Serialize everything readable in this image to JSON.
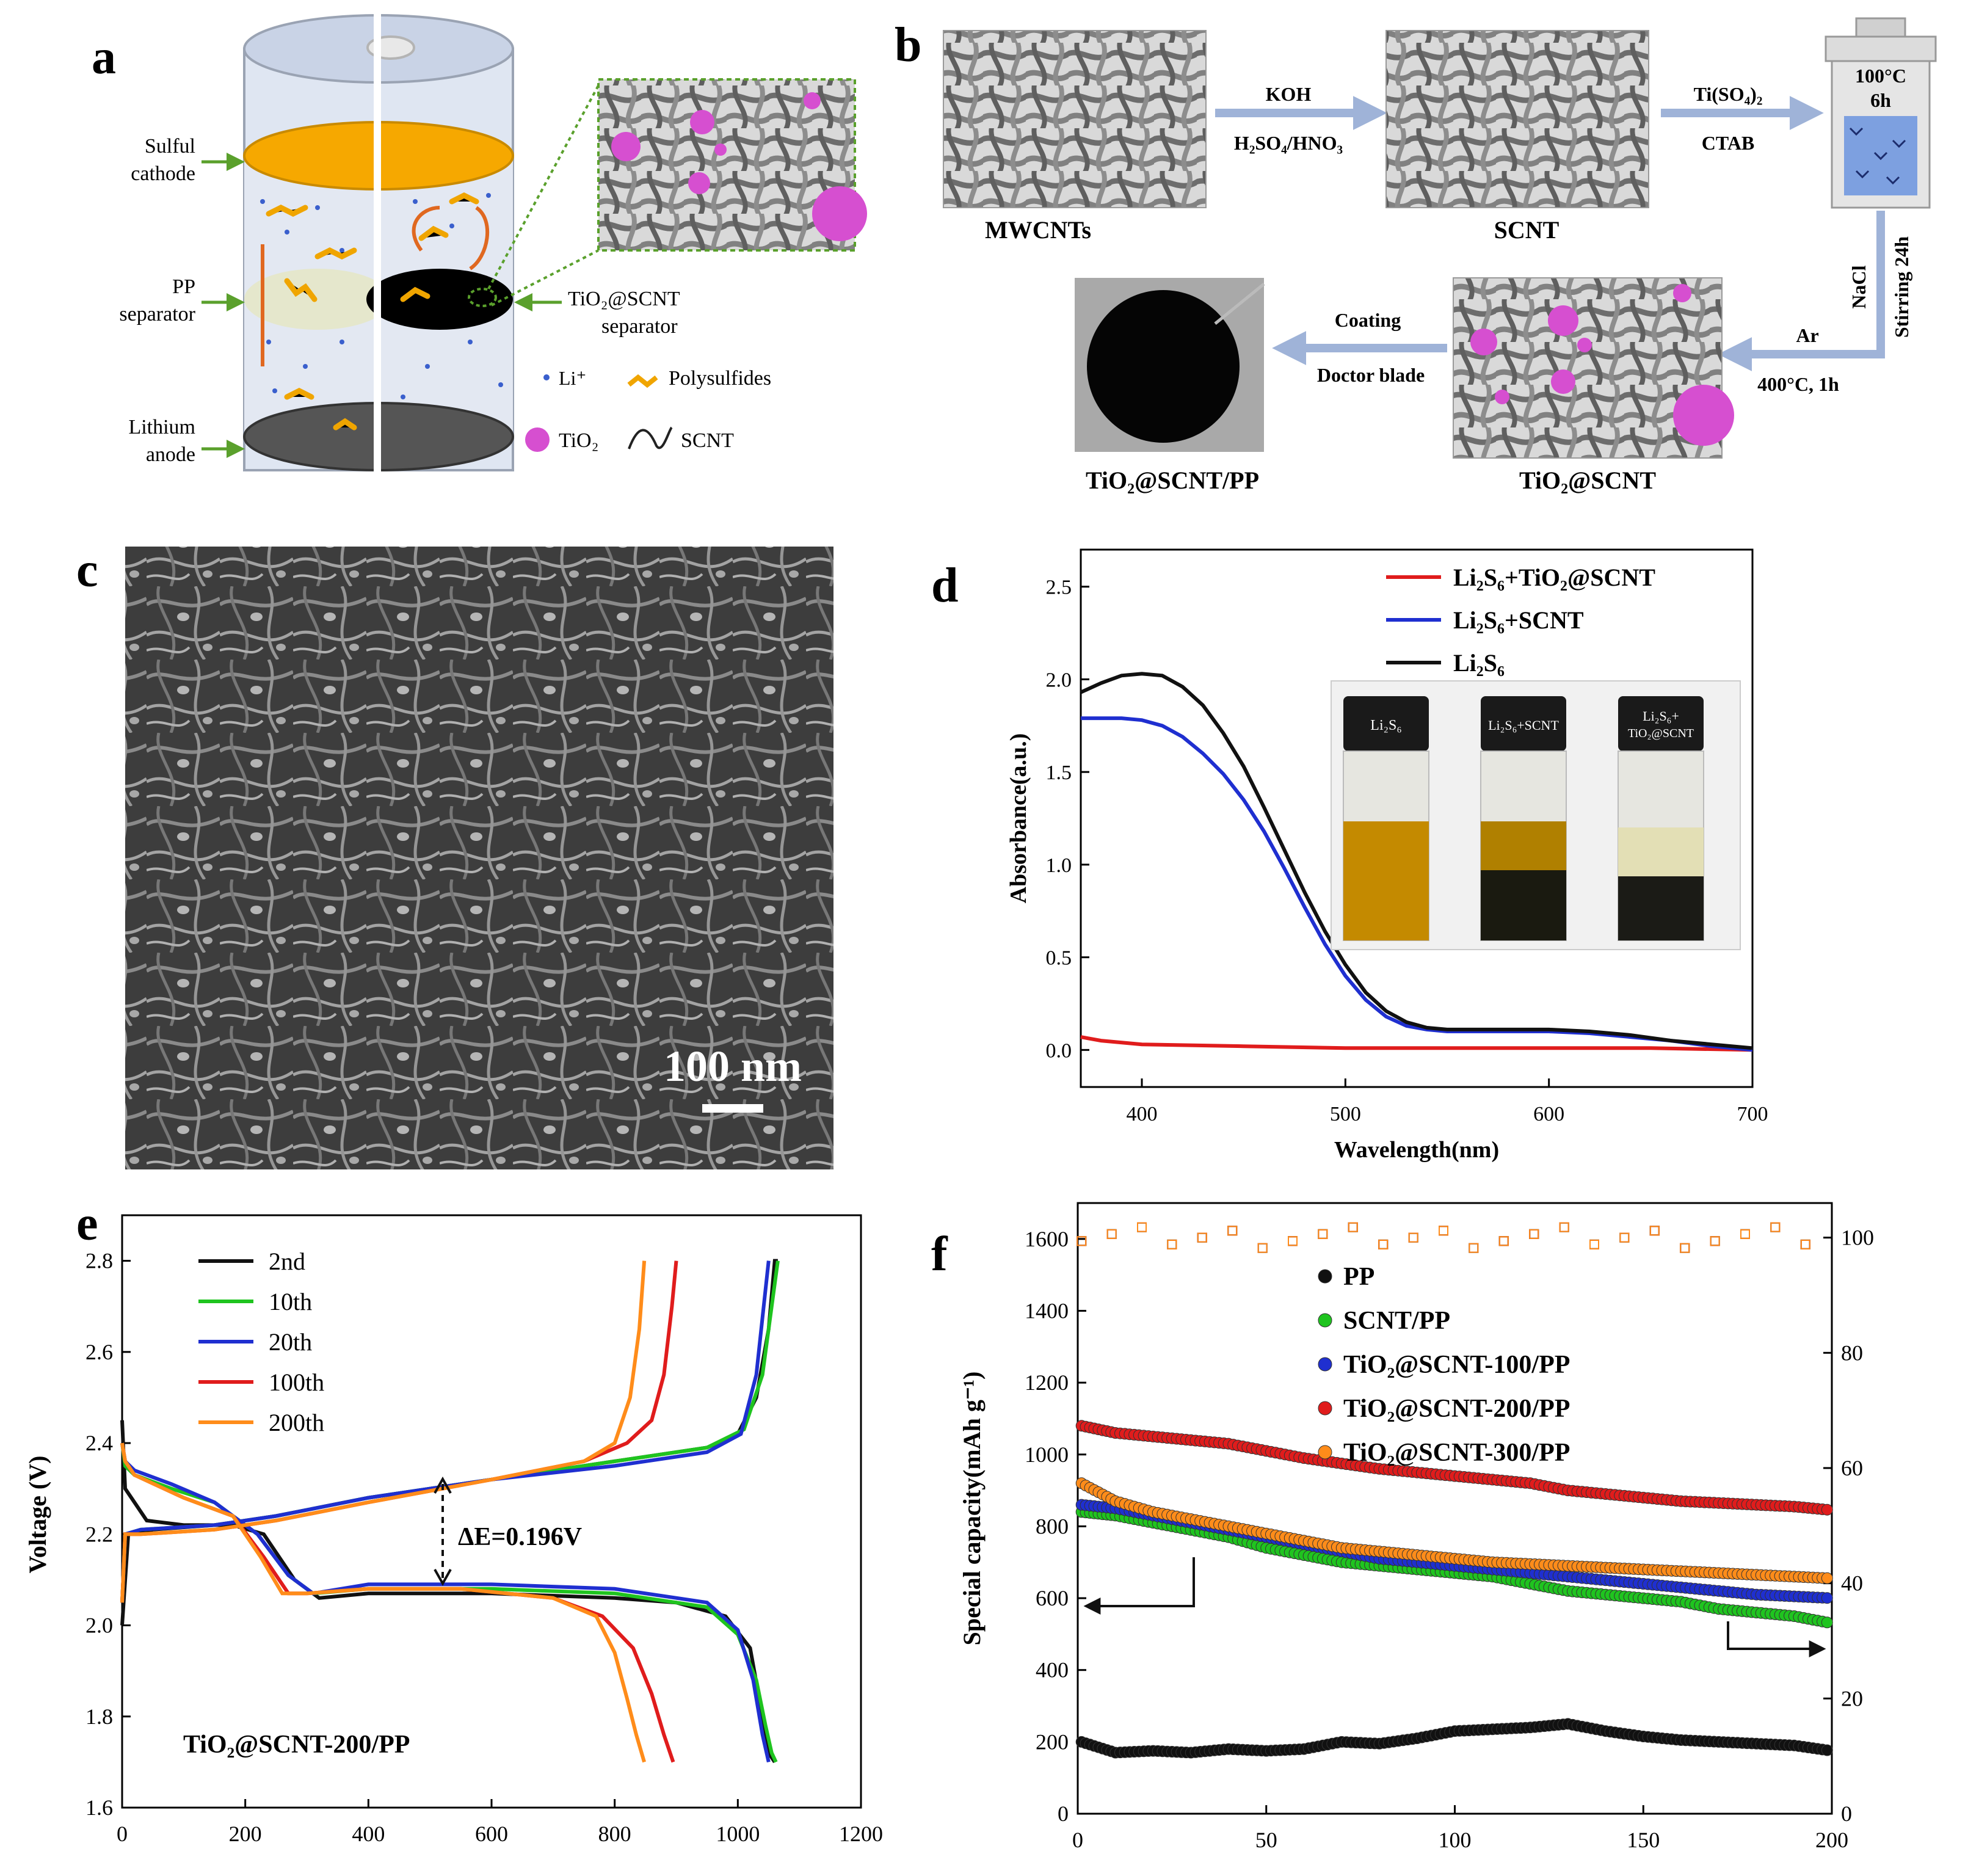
{
  "colors": {
    "black": "#111111",
    "green": "#1fc41f",
    "blue": "#1f2fd0",
    "red": "#e01c1c",
    "orange": "#ff8c1a",
    "tio2": "#d64fd0",
    "arrow_green": "#5aa02c",
    "flow_arrow": "#9fb3d8"
  },
  "panel_a": {
    "letter": "a",
    "labels": {
      "cathode": [
        "Sulful",
        "cathode"
      ],
      "pp": [
        "PP",
        "separator"
      ],
      "anode": [
        "Lithium",
        "anode"
      ],
      "tio2_sep": [
        "TiO₂@SCNT",
        "separator"
      ]
    },
    "legend": {
      "li": "Li⁺",
      "polysulfides": "Polysulfides",
      "tio2": "TiO₂",
      "scnt": "SCNT"
    }
  },
  "panel_b": {
    "letter": "b",
    "mwcnts": "MWCNTs",
    "scnt": "SCNT",
    "step1_top": "KOH",
    "step1_bottom": "H₂SO₄/HNO₃",
    "step2_top": "Ti(SO₄)₂",
    "step2_bottom": "CTAB",
    "reactor_temp": "100°C",
    "reactor_time": "6h",
    "step3_a": "NaCl",
    "step3_b": "Stirring 24h",
    "step4_top": "Ar",
    "step4_bottom": "400°C, 1h",
    "step5_top": "Coating",
    "step5_bottom": "Doctor blade",
    "tio2_scnt": "TiO₂@SCNT",
    "tio2_scnt_pp": "TiO₂@SCNT/PP"
  },
  "panel_c": {
    "letter": "c",
    "scale_bar": "100 nm"
  },
  "panel_d": {
    "letter": "d"
  },
  "panel_e": {
    "letter": "e"
  },
  "panel_f": {
    "letter": "f"
  },
  "chart_data": [
    {
      "panel": "d",
      "type": "line",
      "xlabel": "Wavelength(nm)",
      "ylabel": "Absorbance(a.u.)",
      "xlim": [
        370,
        700
      ],
      "ylim": [
        -0.2,
        2.7
      ],
      "xticks": [
        400,
        500,
        600,
        700
      ],
      "yticks": [
        0.0,
        0.5,
        1.0,
        1.5,
        2.0,
        2.5
      ],
      "legend_position": "top-right",
      "series": [
        {
          "name": "Li₂S₆+TiO₂@SCNT",
          "color": "#e01c1c",
          "x": [
            370,
            380,
            400,
            450,
            500,
            550,
            600,
            650,
            700
          ],
          "y": [
            0.07,
            0.05,
            0.03,
            0.02,
            0.01,
            0.01,
            0.01,
            0.01,
            0.0
          ]
        },
        {
          "name": "Li₂S₆+SCNT",
          "color": "#1f2fd0",
          "x": [
            370,
            380,
            390,
            400,
            410,
            420,
            430,
            440,
            450,
            460,
            470,
            480,
            490,
            500,
            510,
            520,
            530,
            540,
            550,
            560,
            580,
            600,
            620,
            640,
            660,
            680,
            700
          ],
          "y": [
            1.79,
            1.79,
            1.79,
            1.78,
            1.75,
            1.69,
            1.6,
            1.49,
            1.35,
            1.18,
            0.98,
            0.77,
            0.57,
            0.4,
            0.27,
            0.18,
            0.13,
            0.11,
            0.1,
            0.1,
            0.1,
            0.1,
            0.09,
            0.07,
            0.05,
            0.02,
            0.0
          ]
        },
        {
          "name": "Li₂S₆",
          "color": "#111111",
          "x": [
            370,
            380,
            390,
            400,
            410,
            420,
            430,
            440,
            450,
            460,
            470,
            480,
            490,
            500,
            510,
            520,
            530,
            540,
            550,
            560,
            580,
            600,
            620,
            640,
            660,
            680,
            700
          ],
          "y": [
            1.93,
            1.98,
            2.02,
            2.03,
            2.02,
            1.96,
            1.86,
            1.71,
            1.53,
            1.31,
            1.08,
            0.85,
            0.64,
            0.46,
            0.31,
            0.21,
            0.15,
            0.12,
            0.11,
            0.11,
            0.11,
            0.11,
            0.1,
            0.08,
            0.05,
            0.03,
            0.01
          ]
        }
      ],
      "inset_labels": [
        "Li₂S₆",
        "Li₂S₆+SCNT",
        "Li₂S₆+",
        "TiO₂@SCNT"
      ]
    },
    {
      "panel": "e",
      "type": "line",
      "xlabel": "",
      "ylabel": "Voltage (V)",
      "xlim": [
        0,
        1200
      ],
      "ylim": [
        1.6,
        2.9
      ],
      "xticks": [
        0,
        200,
        400,
        600,
        800,
        1000,
        1200
      ],
      "yticks": [
        1.6,
        1.8,
        2.0,
        2.2,
        2.4,
        2.6,
        2.8
      ],
      "legend_position": "top-left",
      "annotation": "ΔE=0.196V",
      "annotation_x": 520,
      "sample_label": "TiO₂@SCNT-200/PP",
      "series": [
        {
          "name": "2nd",
          "color": "#111111",
          "discharge": {
            "x": [
              0,
              5,
              15,
              40,
              100,
              180,
              230,
              280,
              320,
              400,
              600,
              800,
              900,
              980,
              1020,
              1040,
              1050,
              1060
            ],
            "y": [
              2.45,
              2.3,
              2.28,
              2.23,
              2.22,
              2.22,
              2.2,
              2.1,
              2.06,
              2.07,
              2.07,
              2.06,
              2.05,
              2.02,
              1.95,
              1.8,
              1.72,
              1.7
            ]
          },
          "charge": {
            "x": [
              0,
              10,
              50,
              150,
              250,
              400,
              600,
              800,
              950,
              1000,
              1030,
              1050,
              1060,
              1065
            ],
            "y": [
              2.0,
              2.2,
              2.21,
              2.22,
              2.24,
              2.28,
              2.32,
              2.36,
              2.39,
              2.42,
              2.5,
              2.65,
              2.8,
              2.8
            ]
          }
        },
        {
          "name": "10th",
          "color": "#1fc41f",
          "discharge": {
            "x": [
              0,
              5,
              20,
              80,
              150,
              220,
              270,
              310,
              400,
              600,
              800,
              950,
              1000,
              1030,
              1045,
              1055,
              1062
            ],
            "y": [
              2.4,
              2.35,
              2.33,
              2.3,
              2.27,
              2.2,
              2.11,
              2.07,
              2.08,
              2.08,
              2.07,
              2.04,
              1.98,
              1.88,
              1.78,
              1.72,
              1.7
            ]
          },
          "charge": {
            "x": [
              0,
              5,
              30,
              150,
              250,
              400,
              600,
              800,
              950,
              1010,
              1040,
              1055,
              1065
            ],
            "y": [
              2.05,
              2.2,
              2.21,
              2.22,
              2.24,
              2.28,
              2.32,
              2.36,
              2.39,
              2.43,
              2.55,
              2.7,
              2.8
            ]
          }
        },
        {
          "name": "20th",
          "color": "#1f2fd0",
          "discharge": {
            "x": [
              0,
              5,
              20,
              80,
              150,
              220,
              270,
              310,
              400,
              600,
              800,
              950,
              1000,
              1025,
              1040,
              1050
            ],
            "y": [
              2.4,
              2.36,
              2.34,
              2.31,
              2.27,
              2.2,
              2.11,
              2.07,
              2.09,
              2.09,
              2.08,
              2.05,
              1.99,
              1.88,
              1.76,
              1.7
            ]
          },
          "charge": {
            "x": [
              0,
              5,
              30,
              150,
              250,
              400,
              600,
              800,
              950,
              1005,
              1030,
              1042,
              1050
            ],
            "y": [
              2.05,
              2.2,
              2.21,
              2.22,
              2.24,
              2.28,
              2.32,
              2.35,
              2.38,
              2.42,
              2.55,
              2.7,
              2.8
            ]
          }
        },
        {
          "name": "100th",
          "color": "#e01c1c",
          "discharge": {
            "x": [
              0,
              5,
              20,
              100,
              180,
              230,
              270,
              300,
              400,
              550,
              700,
              780,
              830,
              860,
              880,
              895
            ],
            "y": [
              2.4,
              2.36,
              2.33,
              2.28,
              2.24,
              2.15,
              2.07,
              2.07,
              2.08,
              2.08,
              2.06,
              2.02,
              1.95,
              1.85,
              1.76,
              1.7
            ]
          },
          "charge": {
            "x": [
              0,
              5,
              30,
              150,
              250,
              400,
              600,
              750,
              820,
              860,
              880,
              893,
              900
            ],
            "y": [
              2.05,
              2.2,
              2.2,
              2.21,
              2.23,
              2.27,
              2.32,
              2.36,
              2.4,
              2.45,
              2.55,
              2.7,
              2.8
            ]
          }
        },
        {
          "name": "200th",
          "color": "#ff8c1a",
          "discharge": {
            "x": [
              0,
              5,
              20,
              100,
              180,
              225,
              260,
              300,
              400,
              550,
              700,
              770,
              800,
              820,
              835,
              848
            ],
            "y": [
              2.4,
              2.36,
              2.33,
              2.28,
              2.24,
              2.15,
              2.07,
              2.07,
              2.08,
              2.08,
              2.06,
              2.02,
              1.94,
              1.84,
              1.76,
              1.7
            ]
          },
          "charge": {
            "x": [
              0,
              5,
              30,
              150,
              250,
              400,
              600,
              750,
              800,
              825,
              840,
              848
            ],
            "y": [
              2.05,
              2.2,
              2.2,
              2.21,
              2.23,
              2.27,
              2.32,
              2.36,
              2.4,
              2.5,
              2.65,
              2.8
            ]
          }
        }
      ]
    },
    {
      "panel": "f",
      "type": "scatter",
      "xlabel": "",
      "ylabel": "Special capacity(mAh g⁻¹)",
      "xlim": [
        0,
        200
      ],
      "ylim": [
        0,
        1700
      ],
      "xticks": [
        0,
        50,
        100,
        150,
        200
      ],
      "yticks": [
        0,
        200,
        400,
        600,
        800,
        1000,
        1200,
        1400,
        1600
      ],
      "y2lim": [
        0,
        106
      ],
      "y2ticks": [
        0,
        20,
        40,
        60,
        80,
        100
      ],
      "legend_position": "top-left",
      "series": [
        {
          "name": "PP",
          "color": "#111111",
          "x": [
            1,
            10,
            20,
            30,
            40,
            50,
            60,
            70,
            80,
            90,
            100,
            110,
            120,
            130,
            140,
            150,
            160,
            170,
            180,
            190,
            200
          ],
          "y": [
            200,
            170,
            175,
            170,
            180,
            175,
            180,
            200,
            195,
            210,
            230,
            235,
            240,
            250,
            230,
            215,
            205,
            200,
            195,
            190,
            175
          ]
        },
        {
          "name": "SCNT/PP",
          "color": "#1fc41f",
          "x": [
            1,
            10,
            20,
            30,
            40,
            50,
            60,
            70,
            80,
            90,
            100,
            110,
            120,
            130,
            140,
            150,
            160,
            170,
            180,
            190,
            200
          ],
          "y": [
            840,
            830,
            810,
            790,
            770,
            740,
            720,
            700,
            690,
            680,
            670,
            660,
            640,
            620,
            610,
            600,
            590,
            570,
            560,
            550,
            530
          ]
        },
        {
          "name": "TiO₂@SCNT-100/PP",
          "color": "#1f2fd0",
          "x": [
            1,
            10,
            20,
            30,
            40,
            50,
            60,
            70,
            80,
            90,
            100,
            110,
            120,
            130,
            140,
            150,
            160,
            170,
            180,
            190,
            200
          ],
          "y": [
            860,
            850,
            830,
            810,
            790,
            770,
            750,
            730,
            710,
            700,
            690,
            680,
            670,
            660,
            650,
            640,
            630,
            620,
            610,
            605,
            600
          ]
        },
        {
          "name": "TiO₂@SCNT-200/PP",
          "color": "#e01c1c",
          "x": [
            1,
            10,
            20,
            30,
            40,
            50,
            60,
            70,
            80,
            90,
            100,
            110,
            120,
            130,
            140,
            150,
            160,
            170,
            180,
            190,
            200
          ],
          "y": [
            1080,
            1060,
            1050,
            1040,
            1030,
            1010,
            990,
            975,
            960,
            950,
            940,
            930,
            920,
            900,
            890,
            880,
            870,
            865,
            860,
            855,
            845
          ]
        },
        {
          "name": "TiO₂@SCNT-300/PP",
          "color": "#ff8c1a",
          "x": [
            1,
            10,
            20,
            30,
            40,
            50,
            60,
            70,
            80,
            90,
            100,
            110,
            120,
            130,
            140,
            150,
            160,
            170,
            180,
            190,
            200
          ],
          "y": [
            920,
            870,
            840,
            820,
            800,
            780,
            760,
            740,
            730,
            720,
            710,
            700,
            695,
            690,
            685,
            680,
            675,
            670,
            665,
            660,
            655
          ]
        }
      ],
      "efficiency_approx": 100
    }
  ]
}
